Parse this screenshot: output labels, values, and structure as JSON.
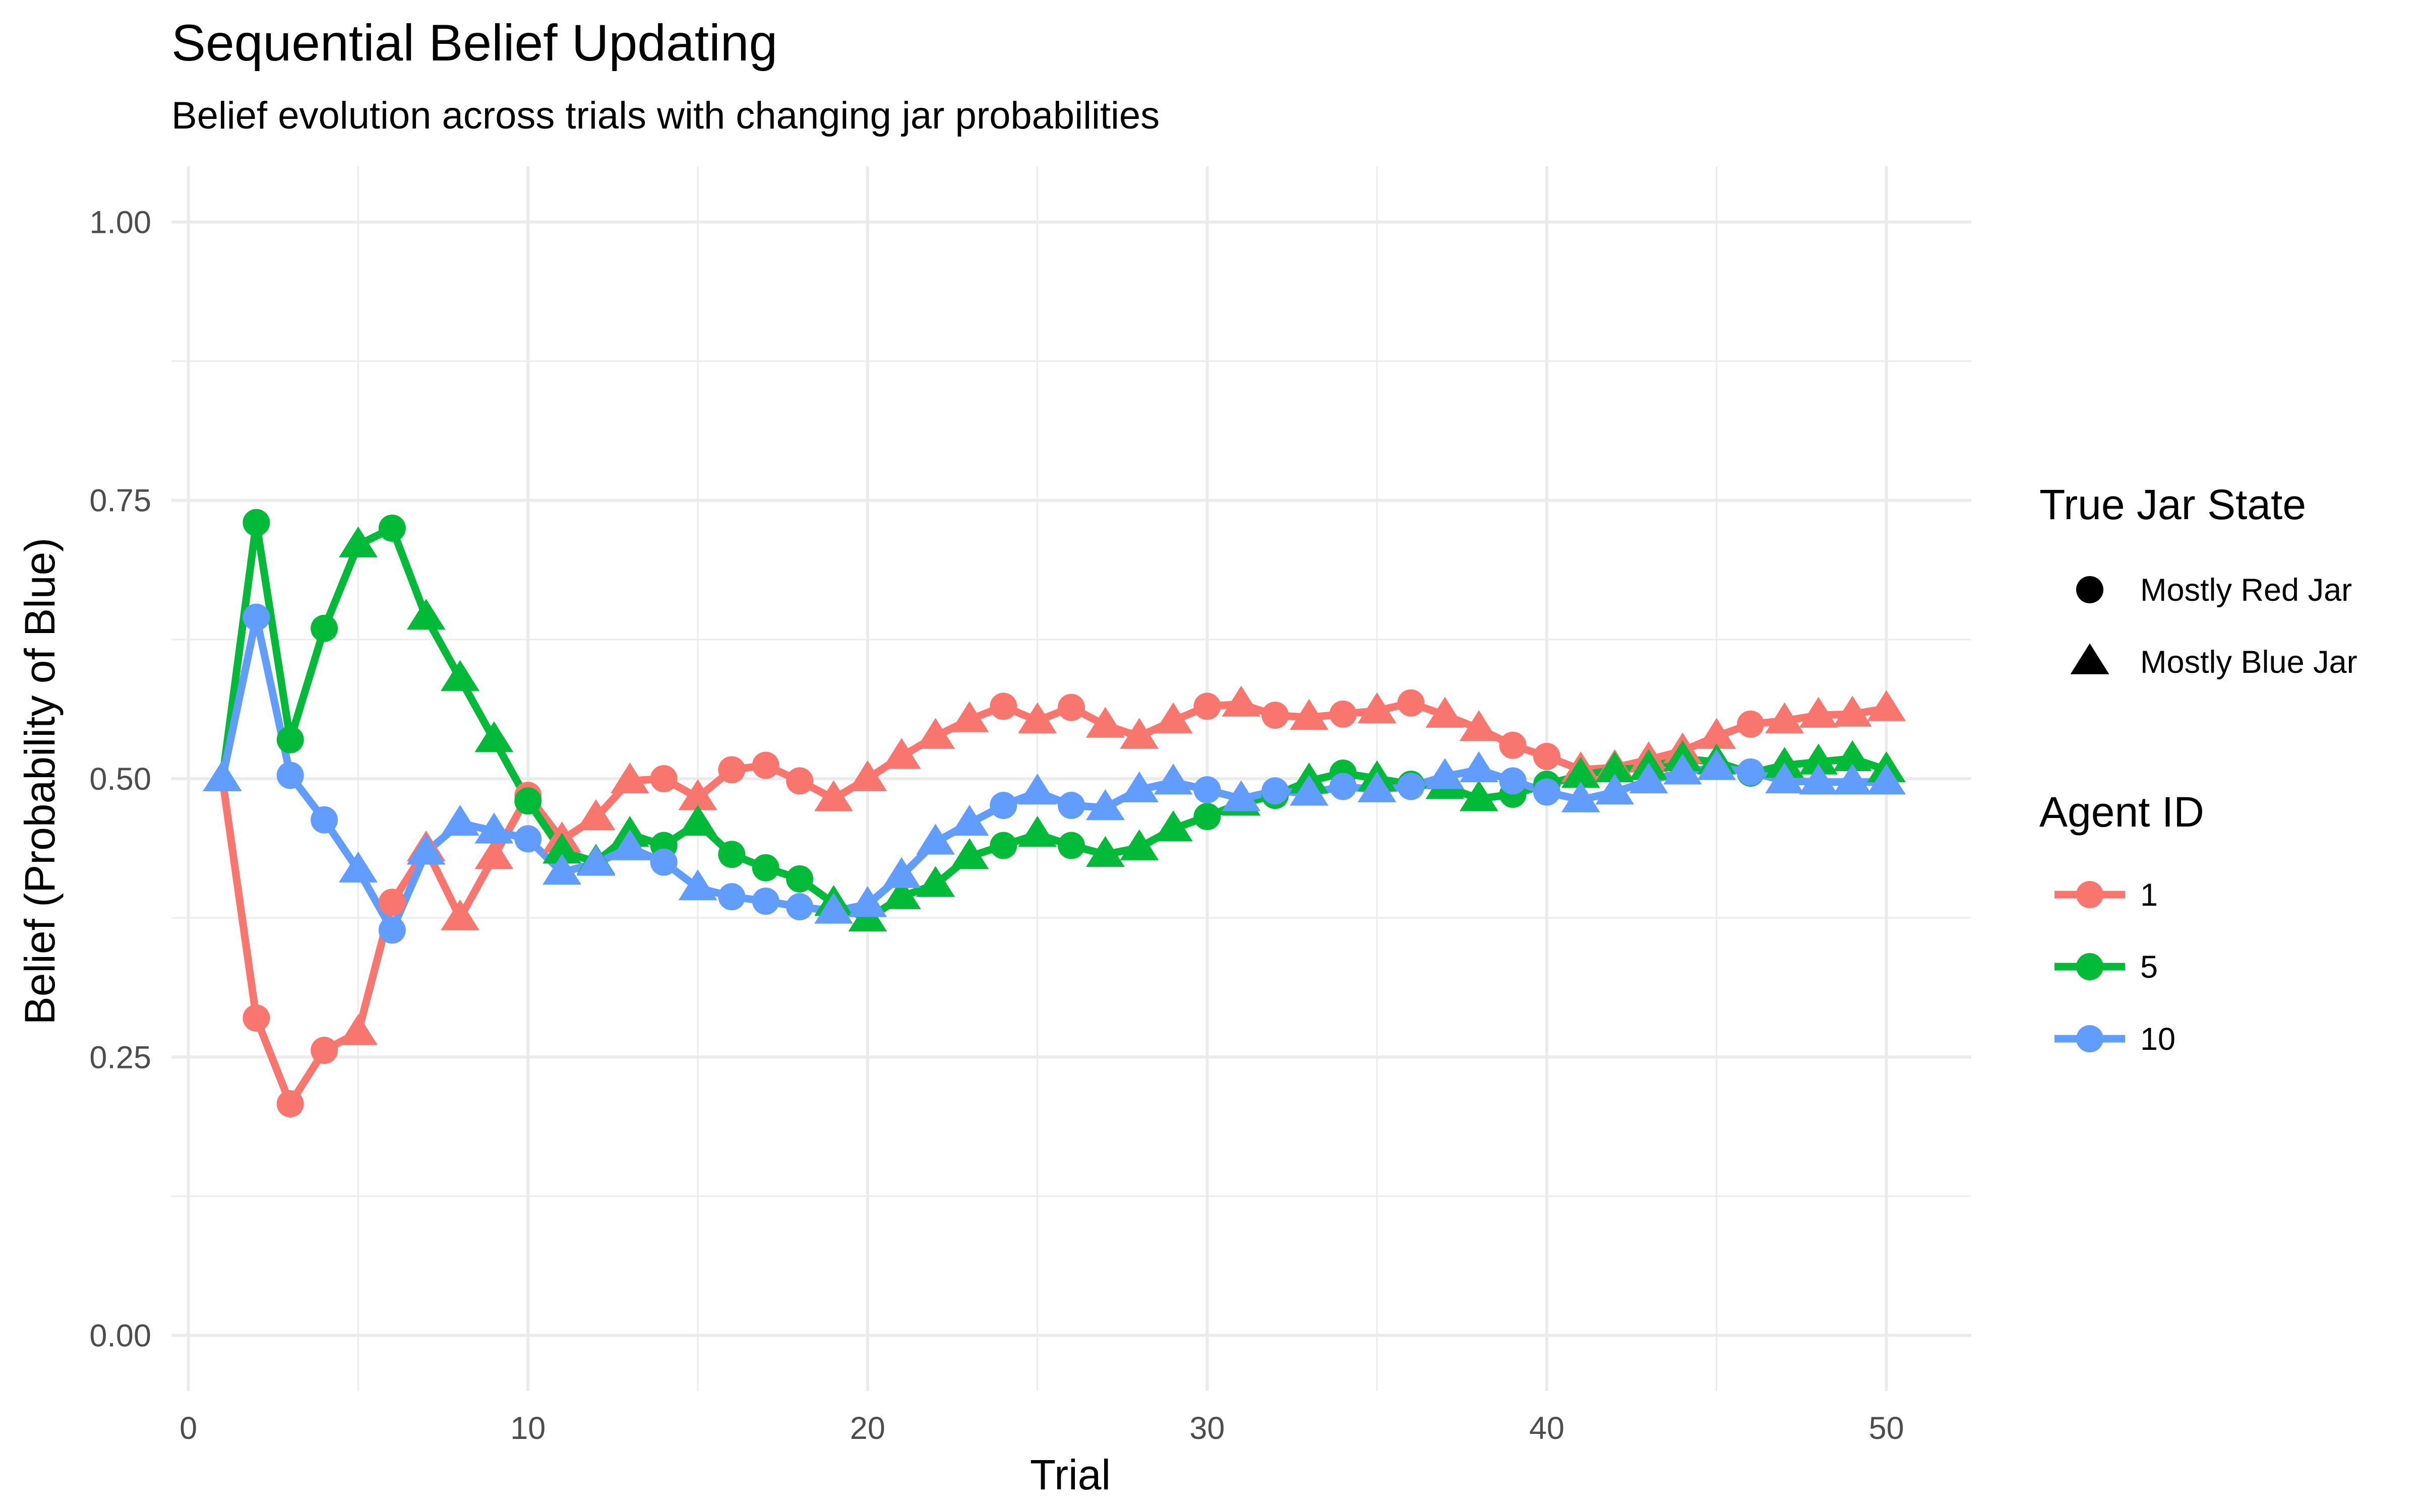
{
  "chart_data": {
    "type": "line",
    "title": "Sequential Belief Updating",
    "subtitle": "Belief evolution across trials with changing jar probabilities",
    "xlabel": "Trial",
    "ylabel": "Belief (Probability of Blue)",
    "xlim": [
      -0.5,
      52.5
    ],
    "ylim": [
      -0.05,
      1.05
    ],
    "x_ticks": [
      0,
      10,
      20,
      30,
      40,
      50
    ],
    "x_tick_labels": [
      "0",
      "10",
      "20",
      "30",
      "40",
      "50"
    ],
    "y_ticks": [
      0,
      0.25,
      0.5,
      0.75,
      1
    ],
    "y_tick_labels": [
      "0.00",
      "0.25",
      "0.50",
      "0.75",
      "1.00"
    ],
    "grid": true,
    "legend_position": "right",
    "legend": {
      "shape_title": "True Jar State",
      "shapes": [
        {
          "label": "Mostly Red Jar",
          "shape": "circle"
        },
        {
          "label": "Mostly Blue Jar",
          "shape": "triangle"
        }
      ],
      "color_title": "Agent ID",
      "colors": [
        {
          "label": "1",
          "color": "#F8766D"
        },
        {
          "label": "5",
          "color": "#00BA38"
        },
        {
          "label": "10",
          "color": "#619CFF"
        }
      ]
    },
    "jar_state": [
      "B",
      "R",
      "R",
      "R",
      "B",
      "R",
      "B",
      "B",
      "B",
      "R",
      "B",
      "B",
      "B",
      "R",
      "B",
      "R",
      "R",
      "R",
      "B",
      "B",
      "B",
      "B",
      "B",
      "R",
      "B",
      "R",
      "B",
      "B",
      "B",
      "R",
      "B",
      "R",
      "B",
      "R",
      "B",
      "R",
      "B",
      "B",
      "R",
      "R",
      "B",
      "B",
      "B",
      "B",
      "B",
      "R",
      "B",
      "B",
      "B",
      "B"
    ],
    "x": [
      1,
      2,
      3,
      4,
      5,
      6,
      7,
      8,
      9,
      10,
      11,
      12,
      13,
      14,
      15,
      16,
      17,
      18,
      19,
      20,
      21,
      22,
      23,
      24,
      25,
      26,
      27,
      28,
      29,
      30,
      31,
      32,
      33,
      34,
      35,
      36,
      37,
      38,
      39,
      40,
      41,
      42,
      43,
      44,
      45,
      46,
      47,
      48,
      49,
      50
    ],
    "series": [
      {
        "name": "1",
        "color": "#F8766D",
        "values": [
          0.5,
          0.285,
          0.208,
          0.256,
          0.272,
          0.389,
          0.437,
          0.375,
          0.43,
          0.485,
          0.445,
          0.465,
          0.498,
          0.5,
          0.483,
          0.508,
          0.512,
          0.498,
          0.482,
          0.5,
          0.52,
          0.538,
          0.553,
          0.565,
          0.552,
          0.564,
          0.548,
          0.538,
          0.552,
          0.565,
          0.567,
          0.557,
          0.555,
          0.558,
          0.561,
          0.568,
          0.557,
          0.545,
          0.53,
          0.52,
          0.508,
          0.51,
          0.517,
          0.525,
          0.538,
          0.549,
          0.552,
          0.557,
          0.558,
          0.563
        ]
      },
      {
        "name": "5",
        "color": "#00BA38",
        "values": [
          0.5,
          0.73,
          0.535,
          0.635,
          0.71,
          0.725,
          0.645,
          0.59,
          0.535,
          0.48,
          0.435,
          0.425,
          0.45,
          0.44,
          0.46,
          0.432,
          0.42,
          0.41,
          0.388,
          0.374,
          0.394,
          0.405,
          0.43,
          0.44,
          0.45,
          0.44,
          0.432,
          0.438,
          0.455,
          0.466,
          0.478,
          0.485,
          0.498,
          0.505,
          0.5,
          0.495,
          0.493,
          0.482,
          0.486,
          0.495,
          0.503,
          0.508,
          0.51,
          0.518,
          0.515,
          0.505,
          0.512,
          0.515,
          0.518,
          0.508
        ]
      },
      {
        "name": "10",
        "color": "#619CFF",
        "values": [
          0.5,
          0.645,
          0.503,
          0.463,
          0.418,
          0.364,
          0.434,
          0.46,
          0.453,
          0.446,
          0.416,
          0.424,
          0.438,
          0.425,
          0.402,
          0.394,
          0.39,
          0.385,
          0.381,
          0.387,
          0.413,
          0.443,
          0.46,
          0.476,
          0.488,
          0.476,
          0.474,
          0.49,
          0.497,
          0.49,
          0.482,
          0.489,
          0.487,
          0.493,
          0.49,
          0.493,
          0.502,
          0.508,
          0.498,
          0.488,
          0.481,
          0.488,
          0.498,
          0.506,
          0.51,
          0.506,
          0.498,
          0.497,
          0.497,
          0.497
        ]
      }
    ]
  }
}
